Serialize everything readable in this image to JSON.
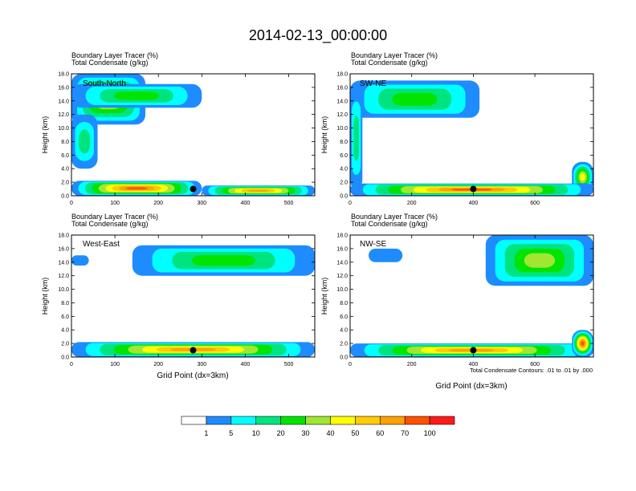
{
  "title": "2014-02-13_00:00:00",
  "panel_subtitle_line1": "Boundary Layer Tracer   (%)",
  "panel_subtitle_line2": "Total Condensate   (g/kg)",
  "ylabel": "Height (km)",
  "xlabel": "Grid Point (dx=3km)",
  "contour_note": "Total Condensate Contours: .01 to .01 by .000",
  "colorbar": {
    "colors": [
      "#ffffff",
      "#1e8cff",
      "#00ffff",
      "#00e480",
      "#00e400",
      "#a0e632",
      "#ffff00",
      "#ffcc00",
      "#ffa000",
      "#ff5000",
      "#ff1a1a"
    ],
    "labels": [
      "1",
      "5",
      "10",
      "20",
      "30",
      "40",
      "50",
      "60",
      "70",
      "100"
    ]
  },
  "chart_data": [
    {
      "type": "heatmap",
      "panel": "South-North",
      "ylim": [
        0,
        18
      ],
      "yticks": [
        "0.0",
        "2.0",
        "4.0",
        "6.0",
        "8.0",
        "10.0",
        "12.0",
        "14.0",
        "16.0",
        "18.0"
      ],
      "xlim": [
        0,
        560
      ],
      "xticks": [
        "0",
        "100",
        "200",
        "300",
        "400",
        "500"
      ],
      "xtick_values": [
        0,
        100,
        200,
        300,
        400,
        500
      ],
      "marker": {
        "x": 280,
        "y": 1.0
      },
      "blobs": [
        {
          "x0": 0,
          "x1": 170,
          "y0": 10.5,
          "y1": 18,
          "peak": 6
        },
        {
          "x0": 0,
          "x1": 300,
          "y0": 13,
          "y1": 16.5,
          "peak": 4
        },
        {
          "x0": 0,
          "x1": 60,
          "y0": 4,
          "y1": 12,
          "peak": 3
        },
        {
          "x0": 0,
          "x1": 300,
          "y0": 0,
          "y1": 2.2,
          "peak": 9
        },
        {
          "x0": 300,
          "x1": 560,
          "y0": 0,
          "y1": 1.5,
          "peak": 8
        }
      ]
    },
    {
      "type": "heatmap",
      "panel": "SW-NE",
      "ylim": [
        0,
        18
      ],
      "yticks": [
        "0.0",
        "2.0",
        "4.0",
        "6.0",
        "8.0",
        "10.0",
        "12.0",
        "14.0",
        "16.0",
        "18.0"
      ],
      "xlim": [
        0,
        790
      ],
      "xticks": [
        "0",
        "200",
        "400",
        "600"
      ],
      "xtick_values": [
        0,
        200,
        400,
        600
      ],
      "marker": {
        "x": 400,
        "y": 1.0
      },
      "blobs": [
        {
          "x0": 0,
          "x1": 420,
          "y0": 11.5,
          "y1": 17,
          "peak": 4
        },
        {
          "x0": 0,
          "x1": 40,
          "y0": 1,
          "y1": 16,
          "peak": 3
        },
        {
          "x0": 720,
          "x1": 790,
          "y0": 0.5,
          "y1": 5,
          "peak": 6
        },
        {
          "x0": 0,
          "x1": 790,
          "y0": 0,
          "y1": 1.8,
          "peak": 9
        }
      ]
    },
    {
      "type": "heatmap",
      "panel": "West-East",
      "ylim": [
        0,
        18
      ],
      "yticks": [
        "0.0",
        "2.0",
        "4.0",
        "6.0",
        "8.0",
        "10.0",
        "12.0",
        "14.0",
        "16.0",
        "18.0"
      ],
      "xlim": [
        0,
        560
      ],
      "xticks": [
        "0",
        "100",
        "200",
        "300",
        "400",
        "500"
      ],
      "xtick_values": [
        0,
        100,
        200,
        300,
        400,
        500
      ],
      "marker": {
        "x": 280,
        "y": 1.0
      },
      "blobs": [
        {
          "x0": 140,
          "x1": 560,
          "y0": 12,
          "y1": 16.5,
          "peak": 4
        },
        {
          "x0": 0,
          "x1": 40,
          "y0": 13.5,
          "y1": 15,
          "peak": 1
        },
        {
          "x0": 0,
          "x1": 560,
          "y0": 0,
          "y1": 2.2,
          "peak": 8
        }
      ]
    },
    {
      "type": "heatmap",
      "panel": "NW-SE",
      "ylim": [
        0,
        18
      ],
      "yticks": [
        "0.0",
        "2.0",
        "4.0",
        "6.0",
        "8.0",
        "10.0",
        "12.0",
        "14.0",
        "16.0",
        "18.0"
      ],
      "xlim": [
        0,
        790
      ],
      "xticks": [
        "0",
        "200",
        "400",
        "600"
      ],
      "xtick_values": [
        0,
        200,
        400,
        600
      ],
      "marker": {
        "x": 400,
        "y": 1.0
      },
      "blobs": [
        {
          "x0": 440,
          "x1": 790,
          "y0": 10.5,
          "y1": 18,
          "peak": 5
        },
        {
          "x0": 60,
          "x1": 170,
          "y0": 14,
          "y1": 16,
          "peak": 1
        },
        {
          "x0": 0,
          "x1": 790,
          "y0": 0,
          "y1": 2.0,
          "peak": 8
        },
        {
          "x0": 720,
          "x1": 790,
          "y0": 0,
          "y1": 4,
          "peak": 9
        }
      ]
    }
  ]
}
